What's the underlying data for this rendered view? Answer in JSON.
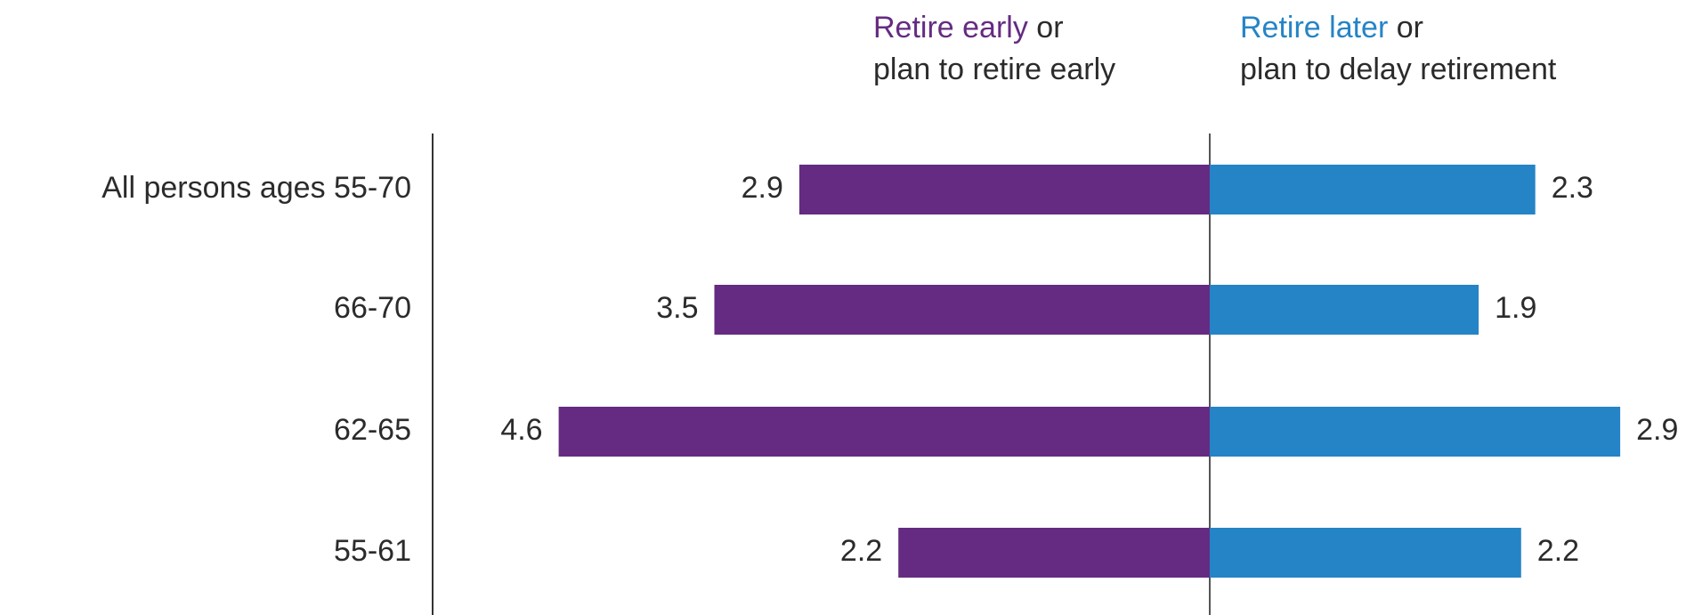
{
  "chart_data": {
    "type": "bar",
    "orientation": "horizontal-diverging",
    "categories": [
      "All persons ages 55-70",
      "66-70",
      "62-65",
      "55-61"
    ],
    "series": [
      {
        "name": "Retire early or plan to retire early",
        "direction": "left",
        "values": [
          2.9,
          3.5,
          4.6,
          2.2
        ]
      },
      {
        "name": "Retire later or plan to delay retirement",
        "direction": "right",
        "values": [
          2.3,
          1.9,
          2.9,
          2.2
        ]
      }
    ],
    "legend": {
      "early": {
        "highlight": "Retire early",
        "rest_line1": " or",
        "line2": "plan to retire early"
      },
      "later": {
        "highlight": "Retire later",
        "rest_line1": " or",
        "line2": "plan to delay retirement"
      }
    },
    "colors": {
      "early": "#652b82",
      "later": "#2584c6",
      "axis": "#555555"
    },
    "title": "",
    "xlabel": "",
    "ylabel": ""
  }
}
